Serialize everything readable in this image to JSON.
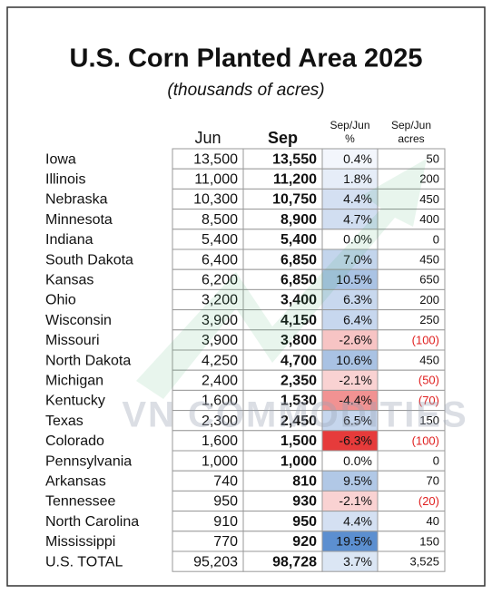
{
  "header": {
    "title": "U.S. Corn Planted Area 2025",
    "subtitle": "(thousands of acres)"
  },
  "watermark": "VN COMMODITIES",
  "table": {
    "columns": [
      [
        "Jun"
      ],
      [
        "Sep"
      ],
      [
        "Sep/Jun",
        "%"
      ],
      [
        "Sep/Jun",
        "acres"
      ]
    ],
    "rows": [
      {
        "state": "Iowa",
        "jun": "13,500",
        "sep": "13,550",
        "pct": "0.4%",
        "acres": "50",
        "pct_color": "#f3f6fc"
      },
      {
        "state": "Illinois",
        "jun": "11,000",
        "sep": "11,200",
        "pct": "1.8%",
        "acres": "200",
        "pct_color": "#e6edf8"
      },
      {
        "state": "Nebraska",
        "jun": "10,300",
        "sep": "10,750",
        "pct": "4.4%",
        "acres": "450",
        "pct_color": "#d4e0f2"
      },
      {
        "state": "Minnesota",
        "jun": "8,500",
        "sep": "8,900",
        "pct": "4.7%",
        "acres": "400",
        "pct_color": "#d1def1"
      },
      {
        "state": "Indiana",
        "jun": "5,400",
        "sep": "5,400",
        "pct": "0.0%",
        "acres": "0",
        "pct_color": "#ffffff"
      },
      {
        "state": "South Dakota",
        "jun": "6,400",
        "sep": "6,850",
        "pct": "7.0%",
        "acres": "450",
        "pct_color": "#c3d5ec"
      },
      {
        "state": "Kansas",
        "jun": "6,200",
        "sep": "6,850",
        "pct": "10.5%",
        "acres": "650",
        "pct_color": "#aac3e4"
      },
      {
        "state": "Ohio",
        "jun": "3,200",
        "sep": "3,400",
        "pct": "6.3%",
        "acres": "200",
        "pct_color": "#c8d8ee"
      },
      {
        "state": "Wisconsin",
        "jun": "3,900",
        "sep": "4,150",
        "pct": "6.4%",
        "acres": "250",
        "pct_color": "#c7d7ee"
      },
      {
        "state": "Missouri",
        "jun": "3,900",
        "sep": "3,800",
        "pct": "-2.6%",
        "acres": "(100)",
        "pct_color": "#f7c4c4"
      },
      {
        "state": "North Dakota",
        "jun": "4,250",
        "sep": "4,700",
        "pct": "10.6%",
        "acres": "450",
        "pct_color": "#a9c2e3"
      },
      {
        "state": "Michigan",
        "jun": "2,400",
        "sep": "2,350",
        "pct": "-2.1%",
        "acres": "(50)",
        "pct_color": "#f9d2d2"
      },
      {
        "state": "Kentucky",
        "jun": "1,600",
        "sep": "1,530",
        "pct": "-4.4%",
        "acres": "(70)",
        "pct_color": "#f19292"
      },
      {
        "state": "Texas",
        "jun": "2,300",
        "sep": "2,450",
        "pct": "6.5%",
        "acres": "150",
        "pct_color": "#c6d6ed"
      },
      {
        "state": "Colorado",
        "jun": "1,600",
        "sep": "1,500",
        "pct": "-6.3%",
        "acres": "(100)",
        "pct_color": "#e63b3b"
      },
      {
        "state": "Pennsylvania",
        "jun": "1,000",
        "sep": "1,000",
        "pct": "0.0%",
        "acres": "0",
        "pct_color": "#ffffff"
      },
      {
        "state": "Arkansas",
        "jun": "740",
        "sep": "810",
        "pct": "9.5%",
        "acres": "70",
        "pct_color": "#b1c8e6"
      },
      {
        "state": "Tennessee",
        "jun": "950",
        "sep": "930",
        "pct": "-2.1%",
        "acres": "(20)",
        "pct_color": "#f9d2d2"
      },
      {
        "state": "North Carolina",
        "jun": "910",
        "sep": "950",
        "pct": "4.4%",
        "acres": "40",
        "pct_color": "#d4e0f2"
      },
      {
        "state": "Mississippi",
        "jun": "770",
        "sep": "920",
        "pct": "19.5%",
        "acres": "150",
        "pct_color": "#5c8fd0"
      },
      {
        "state": "U.S. TOTAL",
        "jun": "95,203",
        "sep": "98,728",
        "pct": "3.7%",
        "acres": "3,525",
        "pct_color": "#dbe6f4"
      }
    ]
  }
}
